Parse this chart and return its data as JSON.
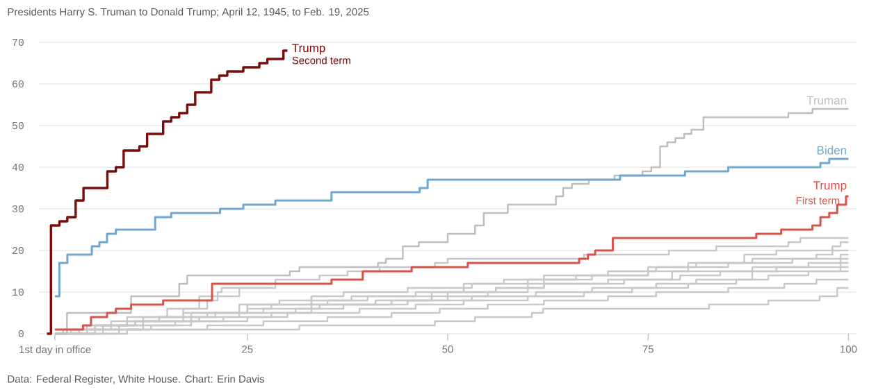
{
  "chart_data": {
    "type": "step",
    "subtitle": "Presidents Harry S. Truman to Donald Trump; April 12, 1945, to Feb. 19, 2025",
    "xlim": [
      -1,
      101
    ],
    "ylim": [
      0,
      70
    ],
    "xticks": [
      {
        "value": 1,
        "label": "1st day in office"
      },
      25,
      50,
      75,
      100
    ],
    "yticks": [
      0,
      10,
      20,
      30,
      40,
      50,
      60,
      70
    ],
    "grid": "y",
    "series": [
      {
        "color": "#c8c8c8",
        "x": [
          1,
          6,
          12,
          17,
          20,
          21.3,
          21.8,
          27.5
        ],
        "values": [
          0,
          2,
          4,
          6,
          8,
          10,
          11,
          11
        ]
      },
      {
        "color": "#c8c8c8",
        "x": [
          1,
          9,
          31.5,
          48.4,
          53.4,
          60.5,
          61.9,
          82.6,
          90,
          96.4,
          98.6,
          100
        ],
        "values": [
          0,
          1,
          2,
          3,
          4,
          5,
          6,
          7,
          8,
          9,
          11,
          11
        ]
      },
      {
        "color": "#c8c8c8",
        "x": [
          1,
          6,
          10,
          15,
          19,
          24,
          28.5,
          34,
          37.5,
          41.5,
          48.4,
          50,
          67,
          77.6,
          83.5,
          92.5,
          94,
          100
        ],
        "values": [
          0,
          2,
          4,
          6,
          9,
          11,
          13,
          14,
          15,
          16,
          17,
          18,
          19,
          20,
          21,
          22,
          23,
          23
        ]
      },
      {
        "color": "#c8c8c8",
        "x": [
          1,
          4,
          12,
          18,
          25,
          33,
          37,
          45,
          53,
          57,
          62,
          70,
          76,
          81,
          87,
          91,
          98,
          99,
          100
        ],
        "values": [
          0,
          1,
          3,
          5,
          7,
          9,
          10,
          11,
          12,
          13,
          14,
          15,
          16,
          17,
          19,
          20,
          21,
          22,
          22
        ]
      },
      {
        "color": "#c8c8c8",
        "x": [
          1,
          2,
          6,
          10,
          14,
          20,
          25,
          28,
          35,
          40,
          50,
          56,
          62,
          68,
          75,
          80,
          88,
          96,
          98,
          100
        ],
        "values": [
          0,
          1,
          2,
          3,
          4,
          5,
          6,
          7,
          8,
          9,
          10,
          11,
          13,
          14,
          16,
          17,
          18,
          19,
          20,
          20
        ]
      },
      {
        "color": "#c8c8c8",
        "x": [
          1,
          7,
          11,
          17,
          24,
          29,
          38,
          46,
          52,
          60,
          66,
          75,
          80,
          85,
          93,
          99,
          100
        ],
        "values": [
          0,
          2,
          3,
          5,
          7,
          8,
          9,
          10,
          12,
          13,
          14,
          15,
          16,
          17,
          18,
          19,
          19
        ]
      },
      {
        "color": "#c8c8c8",
        "x": [
          1,
          5,
          9,
          16,
          22,
          28,
          33,
          43,
          50,
          55,
          60,
          70,
          78,
          88,
          95,
          99,
          100
        ],
        "values": [
          0,
          1,
          2,
          3,
          4,
          5,
          7,
          8,
          9,
          10,
          12,
          13,
          15,
          16,
          17,
          18,
          18
        ]
      },
      {
        "color": "#c8c8c8",
        "x": [
          1,
          3,
          8,
          14,
          21,
          27,
          34,
          41,
          48,
          56,
          62,
          72,
          79,
          84,
          91,
          99,
          100
        ],
        "values": [
          0,
          1,
          3,
          4,
          5,
          6,
          7,
          8,
          10,
          11,
          12,
          13,
          14,
          15,
          16,
          17,
          17
        ]
      },
      {
        "color": "#c8c8c8",
        "x": [
          1,
          5,
          11,
          19,
          24,
          31,
          37,
          45,
          53,
          61,
          68,
          76,
          81,
          88,
          99,
          100
        ],
        "values": [
          0,
          2,
          3,
          4,
          5,
          6,
          7,
          8,
          9,
          10,
          11,
          12,
          13,
          15,
          16,
          16
        ]
      },
      {
        "color": "#c8c8c8",
        "x": [
          1,
          6,
          13,
          18,
          25,
          30,
          39,
          46,
          52,
          60,
          67,
          73,
          80,
          86,
          90,
          95,
          100
        ],
        "values": [
          0,
          1,
          2,
          3,
          4,
          5,
          6,
          7,
          8,
          9,
          10,
          11,
          12,
          13,
          14,
          15,
          15
        ]
      },
      {
        "color": "#c8c8c8",
        "x": [
          1,
          10,
          20,
          27,
          35,
          43,
          49,
          55,
          62,
          70,
          76,
          85,
          92,
          96,
          100
        ],
        "values": [
          0,
          1,
          2,
          3,
          4,
          5,
          6,
          7,
          8,
          9,
          10,
          11,
          12,
          13,
          13
        ]
      },
      {
        "name": "Truman",
        "color": "#bdbdbd",
        "x": [
          1,
          2.5,
          10.5,
          16.5,
          17.5,
          30.3,
          31.5,
          41.3,
          42.3,
          44.4,
          46.4,
          50,
          53.4,
          54.5,
          57.5,
          63.5,
          64.4,
          65.5,
          67.6,
          70.8,
          74.3,
          75.4,
          76.5,
          77.4,
          78.4,
          79.5,
          80.4,
          81.9,
          92.5,
          95.5,
          100
        ],
        "values": [
          0,
          5,
          9,
          12,
          14,
          15,
          16,
          17,
          18,
          21,
          22,
          24,
          26,
          29,
          31,
          33,
          35,
          36,
          37,
          38,
          39,
          40,
          45,
          46,
          47,
          48,
          49,
          52,
          53,
          54,
          54
        ]
      },
      {
        "name": "Trump",
        "color": "#d9534a",
        "x": [
          1,
          4.5,
          5.5,
          7.5,
          8.6,
          10.5,
          14.5,
          20.6,
          35.5,
          39.4,
          45.5,
          52.5,
          66.4,
          67.5,
          68.4,
          70.6,
          88.5,
          91.6,
          95.5,
          96.5,
          97.6,
          98.6,
          99.7,
          100
        ],
        "values": [
          1,
          2,
          4,
          5,
          6,
          7,
          8,
          12,
          13,
          15,
          16,
          17,
          18,
          19,
          20,
          23,
          24,
          25,
          26,
          28,
          29,
          31,
          33,
          33
        ]
      },
      {
        "name": "Biden",
        "color": "#6fa8cf",
        "x": [
          1,
          1.55,
          2.55,
          5.6,
          6.55,
          7.5,
          8.6,
          13.5,
          15.5,
          21.6,
          24.5,
          28.5,
          35.5,
          46.5,
          47.5,
          71.5,
          79.6,
          85,
          96.5,
          97.6,
          100
        ],
        "values": [
          9,
          17,
          19,
          21,
          22,
          24,
          25,
          28,
          29,
          30,
          31,
          32,
          34,
          35,
          37,
          38,
          39,
          40,
          41,
          42,
          42
        ]
      },
      {
        "name": "Trump",
        "color": "#7b0c0c",
        "x": [
          0,
          0.5,
          1.56,
          2.54,
          3.58,
          4.56,
          7.54,
          8.6,
          9.57,
          11.53,
          12.5,
          14.5,
          15.5,
          16.5,
          17.5,
          18.5,
          20.5,
          21.5,
          22.5,
          24.5,
          26.5,
          27.5,
          29.5,
          30
        ],
        "values": [
          0,
          26,
          27,
          28,
          32,
          35,
          39,
          40,
          44,
          45,
          48,
          51,
          52,
          53,
          55,
          58,
          61,
          62,
          63,
          64,
          65,
          66,
          68,
          68
        ]
      }
    ],
    "annotations": [
      {
        "text": "Second term",
        "x": 30,
        "y": 68
      },
      {
        "text": "First term",
        "x": 100,
        "y": 33
      },
      "Data: Federal Register, White House. Chart: Erin Davis"
    ]
  }
}
